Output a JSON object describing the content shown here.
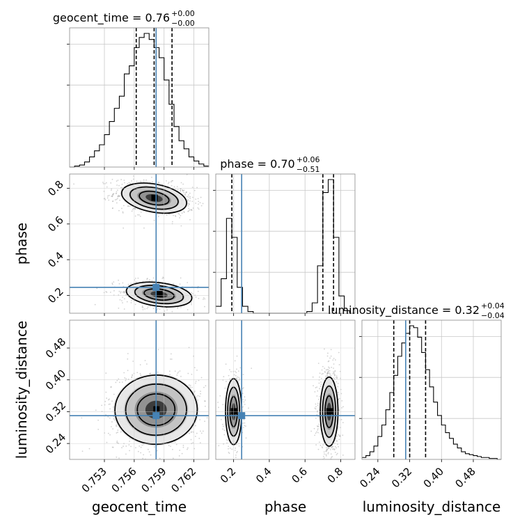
{
  "chart_data": {
    "type": "corner",
    "parameters": [
      "geocent_time",
      "phase",
      "luminosity_distance"
    ],
    "truths": {
      "geocent_time": 0.7582,
      "phase": 0.245,
      "luminosity_distance": 0.31
    },
    "truth_color": "#4682b4",
    "titles": [
      {
        "param": "geocent_time",
        "label": "geocent_time",
        "value": "0.76",
        "plus": "+0.00",
        "minus": "−0.00"
      },
      {
        "param": "phase",
        "label": "phase",
        "value": "0.70",
        "plus": "+0.06",
        "minus": "−0.51"
      },
      {
        "param": "luminosity_distance",
        "label": "luminosity_distance",
        "value": "0.32",
        "plus": "+0.04",
        "minus": "−0.04"
      }
    ],
    "axes": {
      "geocent_time": {
        "range": [
          0.7495,
          0.7635
        ],
        "ticks": [
          0.753,
          0.756,
          0.759,
          0.762
        ],
        "tick_labels": [
          "0.753",
          "0.756",
          "0.759",
          "0.762"
        ]
      },
      "phase": {
        "range": [
          0.1,
          0.88
        ],
        "ticks": [
          0.2,
          0.4,
          0.6,
          0.8
        ],
        "tick_labels": [
          "0.2",
          "0.4",
          "0.6",
          "0.8"
        ]
      },
      "luminosity_distance": {
        "range": [
          0.2,
          0.55
        ],
        "ticks": [
          0.24,
          0.32,
          0.4,
          0.48
        ],
        "tick_labels": [
          "0.24",
          "0.32",
          "0.40",
          "0.48"
        ]
      }
    },
    "histograms": [
      {
        "param": "geocent_time",
        "quantiles": [
          0.7562,
          0.758,
          0.7598
        ],
        "bins": [
          0.7495,
          0.75,
          0.7505,
          0.751,
          0.7515,
          0.752,
          0.7525,
          0.753,
          0.7535,
          0.754,
          0.7545,
          0.755,
          0.7555,
          0.756,
          0.7565,
          0.757,
          0.7575,
          0.758,
          0.7585,
          0.759,
          0.7595,
          0.76,
          0.7605,
          0.761,
          0.7615,
          0.762,
          0.7625,
          0.763,
          0.7635
        ],
        "counts": [
          0,
          1,
          2,
          5,
          10,
          16,
          22,
          32,
          45,
          58,
          70,
          92,
          100,
          118,
          128,
          132,
          126,
          118,
          108,
          86,
          62,
          40,
          26,
          18,
          10,
          6,
          3,
          1
        ]
      },
      {
        "param": "phase",
        "quantiles": [
          0.19,
          0.7,
          0.76
        ],
        "bins": [
          0.1,
          0.13,
          0.16,
          0.19,
          0.22,
          0.25,
          0.28,
          0.31,
          0.34,
          0.37,
          0.4,
          0.43,
          0.46,
          0.49,
          0.52,
          0.55,
          0.58,
          0.61,
          0.64,
          0.67,
          0.7,
          0.73,
          0.76,
          0.79,
          0.82,
          0.85,
          0.88
        ],
        "counts": [
          8,
          40,
          110,
          88,
          30,
          8,
          2,
          0,
          0,
          0,
          0,
          0,
          0,
          0,
          0,
          0,
          0,
          2,
          12,
          55,
          140,
          155,
          88,
          20,
          3,
          0
        ]
      },
      {
        "param": "luminosity_distance",
        "quantiles": [
          0.28,
          0.32,
          0.36
        ],
        "bins": [
          0.2,
          0.21,
          0.22,
          0.23,
          0.24,
          0.25,
          0.26,
          0.27,
          0.28,
          0.29,
          0.3,
          0.31,
          0.32,
          0.33,
          0.34,
          0.35,
          0.36,
          0.37,
          0.38,
          0.39,
          0.4,
          0.41,
          0.42,
          0.43,
          0.44,
          0.45,
          0.46,
          0.47,
          0.48,
          0.49,
          0.5,
          0.51,
          0.52,
          0.53,
          0.54,
          0.55
        ],
        "counts": [
          2,
          4,
          8,
          14,
          24,
          36,
          52,
          70,
          88,
          108,
          122,
          132,
          140,
          138,
          128,
          112,
          94,
          76,
          60,
          46,
          36,
          28,
          22,
          16,
          12,
          8,
          6,
          5,
          4,
          3,
          2,
          2,
          1,
          1,
          0
        ]
      }
    ],
    "blobs": {
      "geocent_time|phase": [
        {
          "mx": 0.758,
          "my": 0.745,
          "sx": 0.0016,
          "sy": 0.038,
          "rho": -0.3,
          "w": 1
        },
        {
          "mx": 0.7585,
          "my": 0.205,
          "sx": 0.0016,
          "sy": 0.032,
          "rho": -0.2,
          "w": 0.55
        }
      ],
      "geocent_time|luminosity_distance": [
        {
          "mx": 0.7582,
          "my": 0.325,
          "sx": 0.002,
          "sy": 0.042,
          "rho": 0.05,
          "w": 1
        }
      ],
      "phase|luminosity_distance": [
        {
          "mx": 0.2,
          "my": 0.32,
          "sx": 0.022,
          "sy": 0.04,
          "rho": 0,
          "w": 0.45
        },
        {
          "mx": 0.735,
          "my": 0.32,
          "sx": 0.024,
          "sy": 0.042,
          "rho": 0,
          "w": 1
        }
      ]
    }
  }
}
